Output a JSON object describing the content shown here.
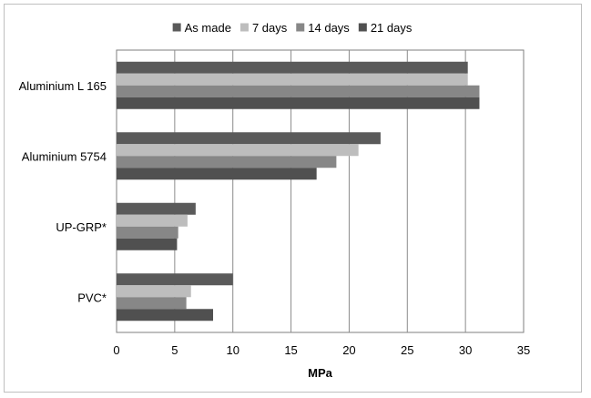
{
  "chart_data": {
    "type": "bar",
    "orientation": "horizontal",
    "categories": [
      "Aluminium L 165",
      "Aluminium 5754",
      "UP-GRP*",
      "PVC*"
    ],
    "series": [
      {
        "name": "As made",
        "color": "#5a5a5a",
        "values": [
          30.2,
          22.7,
          6.8,
          10.0
        ]
      },
      {
        "name": "7 days",
        "color": "#bdbdbd",
        "values": [
          30.2,
          20.8,
          6.1,
          6.4
        ]
      },
      {
        "name": "14 days",
        "color": "#878787",
        "values": [
          31.2,
          18.9,
          5.3,
          6.0
        ]
      },
      {
        "name": "21 days",
        "color": "#505050",
        "values": [
          31.2,
          17.2,
          5.2,
          8.3
        ]
      }
    ],
    "xlabel": "MPa",
    "ylabel": "",
    "xlim": [
      0,
      35
    ],
    "xticks": [
      0,
      5,
      10,
      15,
      20,
      25,
      30,
      35
    ],
    "grid": true,
    "legend_position": "top"
  }
}
